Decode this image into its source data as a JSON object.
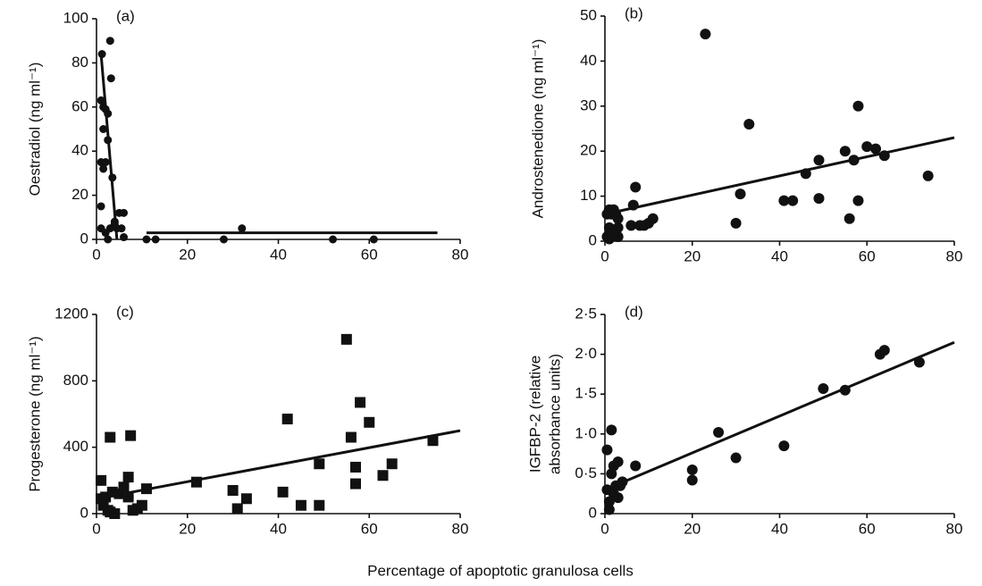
{
  "chart_data": [
    {
      "type": "scatter",
      "panel_label": "(a)",
      "ylabel": "Oestradiol (ng ml⁻¹)",
      "marker": "circle",
      "color": "#111111",
      "x": [
        1.2,
        1,
        1.5,
        2,
        2.5,
        3,
        3.2,
        1.5,
        2.5,
        1,
        1.5,
        2,
        1,
        3.5,
        1,
        2,
        3,
        4,
        4.5,
        5,
        6,
        5.5,
        6,
        2.5,
        4,
        11,
        13,
        28,
        32,
        52,
        61
      ],
      "values": [
        84,
        63,
        60,
        59,
        57,
        90,
        73,
        50,
        45,
        35,
        32,
        35,
        15,
        28,
        5,
        3,
        5,
        7,
        5,
        12,
        12,
        5,
        1,
        0,
        8,
        0,
        0,
        0,
        5,
        0,
        0
      ],
      "trend_lines": [
        {
          "x": [
            1,
            4.5
          ],
          "values": [
            84,
            0
          ]
        },
        {
          "x": [
            11,
            75
          ],
          "values": [
            3,
            3
          ]
        }
      ],
      "xlim": [
        0,
        80
      ],
      "xticks": [
        0,
        20,
        40,
        60,
        80
      ],
      "ylim": [
        0,
        100
      ],
      "yticks": [
        0,
        20,
        40,
        60,
        80,
        100
      ]
    },
    {
      "type": "scatter",
      "panel_label": "(b)",
      "ylabel": "Androstenedione (ng ml⁻¹)",
      "marker": "circle",
      "color": "#111111",
      "x": [
        0.5,
        1,
        1.5,
        2,
        2.5,
        3,
        1,
        2,
        3,
        3,
        0.5,
        1,
        6,
        6.5,
        7,
        8,
        9,
        10,
        11,
        23,
        30,
        31,
        33,
        41,
        43,
        46,
        49,
        49,
        55,
        56,
        57,
        58,
        58,
        60,
        62,
        64,
        74
      ],
      "values": [
        6,
        7,
        6,
        7,
        6,
        5,
        3,
        2,
        1,
        3,
        1,
        0.5,
        3.5,
        8,
        12,
        3.5,
        3.5,
        4,
        5,
        46,
        4,
        10.5,
        26,
        9,
        9,
        15,
        18,
        9.5,
        20,
        5,
        18,
        30,
        9,
        21,
        20.5,
        19,
        14.5
      ],
      "trend_lines": [
        {
          "x": [
            0,
            80
          ],
          "values": [
            6,
            23
          ]
        }
      ],
      "xlim": [
        0,
        80
      ],
      "xticks": [
        0,
        20,
        40,
        60,
        80
      ],
      "ylim": [
        0,
        50
      ],
      "yticks": [
        0,
        10,
        20,
        30,
        40,
        50
      ]
    },
    {
      "type": "scatter",
      "panel_label": "(c)",
      "ylabel": "Progesterone (ng ml⁻¹)",
      "marker": "square",
      "color": "#111111",
      "x": [
        1,
        1,
        1.5,
        2,
        2.5,
        3,
        3,
        3.5,
        4,
        5,
        6,
        7,
        7,
        7.5,
        8,
        9,
        10,
        11,
        22,
        30,
        31,
        33,
        41,
        42,
        45,
        49,
        49,
        55,
        56,
        57,
        57,
        58,
        60,
        63,
        65,
        74
      ],
      "values": [
        200,
        90,
        50,
        100,
        20,
        460,
        10,
        130,
        0,
        120,
        160,
        220,
        100,
        470,
        20,
        30,
        50,
        150,
        190,
        140,
        30,
        90,
        130,
        570,
        50,
        50,
        300,
        1050,
        460,
        180,
        280,
        670,
        550,
        230,
        300,
        440
      ],
      "trend_lines": [
        {
          "x": [
            0,
            80
          ],
          "values": [
            90,
            500
          ]
        }
      ],
      "xlim": [
        0,
        80
      ],
      "xticks": [
        0,
        20,
        40,
        60,
        80
      ],
      "ylim": [
        0,
        1200
      ],
      "yticks": [
        0,
        400,
        800,
        1200
      ]
    },
    {
      "type": "scatter",
      "panel_label": "(d)",
      "ylabel": [
        "IGFBP-2 (relative",
        "absorbance units)"
      ],
      "marker": "circle",
      "color": "#111111",
      "x": [
        0.5,
        0.5,
        1,
        1,
        1.5,
        1.5,
        2,
        2,
        2.5,
        3,
        3,
        3.5,
        4,
        7,
        20,
        20,
        26,
        30,
        41,
        50,
        55,
        63,
        64,
        72
      ],
      "values": [
        0.8,
        0.3,
        0.05,
        0.15,
        0.5,
        1.05,
        0.6,
        0.25,
        0.35,
        0.65,
        0.2,
        0.35,
        0.4,
        0.6,
        0.55,
        0.42,
        1.02,
        0.7,
        0.85,
        1.57,
        1.55,
        2.0,
        2.05,
        1.9
      ],
      "trend_lines": [
        {
          "x": [
            0,
            80
          ],
          "values": [
            0.3,
            2.15
          ]
        }
      ],
      "xlim": [
        0,
        80
      ],
      "xticks": [
        0,
        20,
        40,
        60,
        80
      ],
      "ylim": [
        0,
        2.5
      ],
      "yticks": [
        0,
        {
          "value": 0.5,
          "label": "0·5"
        },
        {
          "value": 1,
          "label": "1·0"
        },
        {
          "value": 1.5,
          "label": "1·5"
        },
        {
          "value": 2,
          "label": "2·0"
        },
        {
          "value": 2.5,
          "label": "2·5"
        }
      ]
    }
  ],
  "figure_xlabel": "Percentage of apoptotic granulosa cells"
}
